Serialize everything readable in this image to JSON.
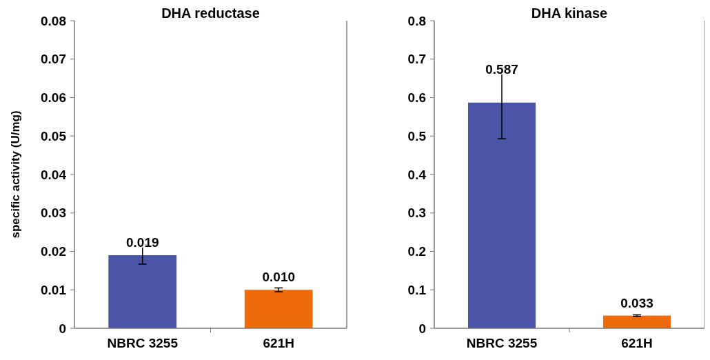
{
  "chart_data": [
    {
      "type": "bar",
      "title": "DHA reductase",
      "ylabel": "specific activity (U/mg)",
      "categories": [
        "NBRC 3255",
        "621H"
      ],
      "values": [
        0.019,
        0.01
      ],
      "colors": [
        "#4a55a8",
        "#ee6a0a"
      ],
      "errors": [
        [
          0.0167,
          0.0217
        ],
        [
          0.0095,
          0.0105
        ]
      ],
      "value_labels": [
        "0.019",
        "0.010"
      ],
      "ylim": [
        0,
        0.08
      ],
      "yticks": [
        0,
        0.01,
        0.02,
        0.03,
        0.04,
        0.05,
        0.06,
        0.07,
        0.08
      ]
    },
    {
      "type": "bar",
      "title": "DHA kinase",
      "categories": [
        "NBRC 3255",
        "621H"
      ],
      "values": [
        0.587,
        0.033
      ],
      "colors": [
        "#4a55a8",
        "#ee6a0a"
      ],
      "errors": [
        [
          0.493,
          0.679
        ],
        [
          0.031,
          0.035
        ]
      ],
      "value_labels": [
        "0.587",
        "0.033"
      ],
      "ylim": [
        0,
        0.8
      ],
      "yticks": [
        0,
        0.1,
        0.2,
        0.3,
        0.4,
        0.5,
        0.6,
        0.7,
        0.8
      ]
    }
  ]
}
